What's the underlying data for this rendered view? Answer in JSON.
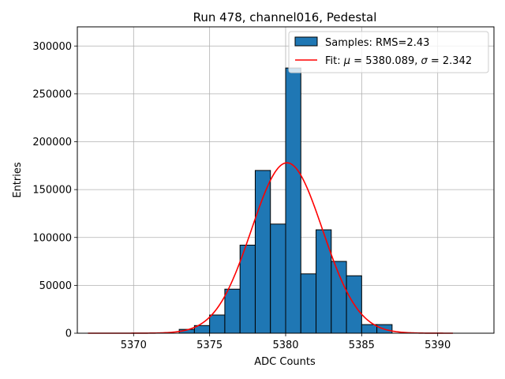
{
  "chart_data": {
    "type": "bar",
    "title": "Run 478, channel016, Pedestal",
    "xlabel": "ADC Counts",
    "ylabel": "Entries",
    "xlim": [
      5366.3,
      5393.7
    ],
    "ylim": [
      0,
      320000
    ],
    "x_ticks": [
      5370,
      5375,
      5380,
      5385,
      5390
    ],
    "y_ticks": [
      0,
      50000,
      100000,
      150000,
      200000,
      250000,
      300000
    ],
    "grid": true,
    "legend_position": "top-right",
    "bar_color": "#1f77b4",
    "fit_color": "#ff0000",
    "histogram": {
      "name": "Samples: RMS=2.43",
      "bin_width": 1,
      "bins": [
        {
          "x0": 5373,
          "value": 4000
        },
        {
          "x0": 5374,
          "value": 8000
        },
        {
          "x0": 5375,
          "value": 19000
        },
        {
          "x0": 5376,
          "value": 46000
        },
        {
          "x0": 5377,
          "value": 92000
        },
        {
          "x0": 5378,
          "value": 170000
        },
        {
          "x0": 5379,
          "value": 114000
        },
        {
          "x0": 5380,
          "value": 277000
        },
        {
          "x0": 5381,
          "value": 62000
        },
        {
          "x0": 5382,
          "value": 108000
        },
        {
          "x0": 5383,
          "value": 75000
        },
        {
          "x0": 5384,
          "value": 60000
        },
        {
          "x0": 5385,
          "value": 9000
        },
        {
          "x0": 5386,
          "value": 9000
        }
      ]
    },
    "fit": {
      "label_prefix": "Fit: ",
      "mu_symbol": "μ",
      "mu_text": " = 5380.089, ",
      "sigma_symbol": "σ",
      "sigma_text": " = 2.342",
      "mu": 5380.089,
      "sigma": 2.342,
      "amplitude": 178000,
      "x_range": [
        5367,
        5391
      ]
    }
  }
}
